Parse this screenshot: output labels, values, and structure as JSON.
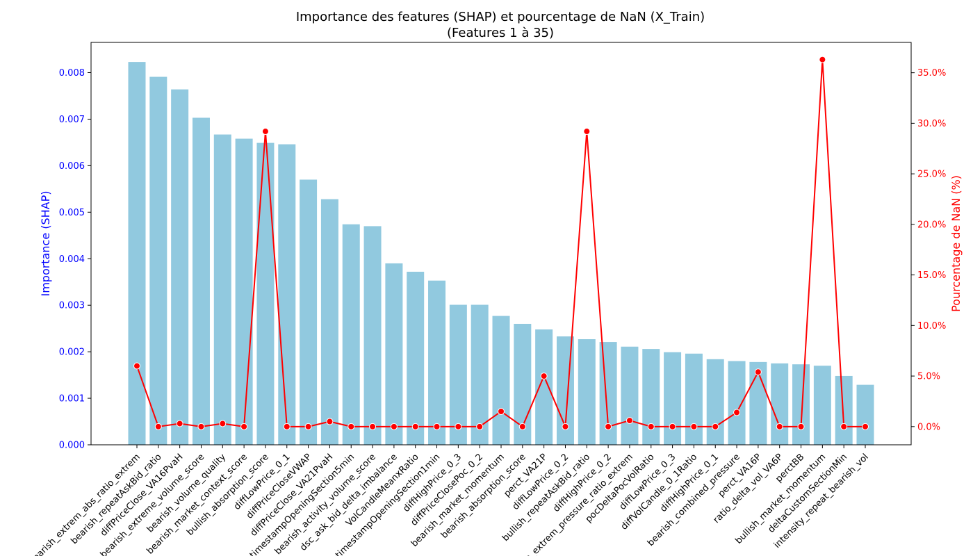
{
  "chart_data": {
    "type": "bar",
    "title": "Importance des features (SHAP) et pourcentage de NaN (X_Train)",
    "subtitle": "(Features 1 à 35)",
    "ylabel_left": "Importance (SHAP)",
    "ylabel_right": "Pourcentage de NaN (%)",
    "xlabel": "",
    "categories": [
      "bearish_extrem_abs_ratio_extrem",
      "bearish_repeatAskBid_ratio",
      "diffPriceClose_VA16PvaH",
      "bearish_extreme_volume_score",
      "bearish_volume_quality",
      "bearish_market_context_score",
      "bullish_absorption_score",
      "diffLowPrice_0_1",
      "diffPriceCloseVWAP",
      "diffPriceClose_VA21PvaH",
      "timestampOpeningSection5min",
      "bearish_activity_volume_score",
      "dsc_ask_bid_delta_imbalance",
      "VolCandleMeanxRatio",
      "timestampOpeningSection1min",
      "diffHighPrice_0_3",
      "diffPriceClosePoc_0_2",
      "bearish_market_momentum",
      "bearish_absorption_score",
      "perct_VA21P",
      "diffLowPrice_0_2",
      "bullish_repeatAskBid_ratio",
      "diffHighPrice_0_2",
      "bearish_extrem_pressure_ratio_extrem",
      "pocDeltaPocVolRatio",
      "diffLowPrice_0_3",
      "diffVolCandle_0_1Ratio",
      "diffHighPrice_0_1",
      "bearish_combined_pressure",
      "perct_VA16P",
      "ratio_delta_vol_VA6P",
      "perctBB",
      "bullish_market_momentum",
      "deltaCustomSectionMin",
      "intensity_repeat_bearish_vol"
    ],
    "series": [
      {
        "name": "Importance (SHAP)",
        "kind": "bar",
        "axis": "left",
        "color": "#91c9df",
        "values": [
          0.00823,
          0.00791,
          0.00764,
          0.00703,
          0.00667,
          0.00658,
          0.00649,
          0.00646,
          0.0057,
          0.00528,
          0.00474,
          0.0047,
          0.0039,
          0.00372,
          0.00353,
          0.00301,
          0.00301,
          0.00277,
          0.0026,
          0.00248,
          0.00233,
          0.00227,
          0.00221,
          0.00211,
          0.00206,
          0.00199,
          0.00196,
          0.00184,
          0.0018,
          0.00178,
          0.00175,
          0.00173,
          0.0017,
          0.00148,
          0.00129
        ]
      },
      {
        "name": "Pourcentage de NaN (%)",
        "kind": "line",
        "axis": "right",
        "color": "#ff0000",
        "values": [
          6.0,
          0.0,
          0.3,
          0.0,
          0.3,
          0.0,
          29.2,
          0.0,
          0.0,
          0.5,
          0.0,
          0.0,
          0.0,
          0.0,
          0.0,
          0.0,
          0.0,
          1.5,
          0.0,
          5.0,
          0.0,
          29.2,
          0.0,
          0.6,
          0.0,
          0.0,
          0.0,
          0.0,
          1.4,
          5.4,
          0.0,
          0.0,
          36.3,
          0.0,
          0.0
        ]
      }
    ],
    "ylim_left": [
      0,
      0.00865
    ],
    "ylim_right": [
      -1.8,
      38.0
    ],
    "yticks_left": [
      "0.000",
      "0.001",
      "0.002",
      "0.003",
      "0.004",
      "0.005",
      "0.006",
      "0.007",
      "0.008"
    ],
    "yticks_left_values": [
      0,
      0.001,
      0.002,
      0.003,
      0.004,
      0.005,
      0.006,
      0.007,
      0.008
    ],
    "yticks_right": [
      "0.0%",
      "5.0%",
      "10.0%",
      "15.0%",
      "20.0%",
      "25.0%",
      "30.0%",
      "35.0%"
    ],
    "yticks_right_values": [
      0,
      5,
      10,
      15,
      20,
      25,
      30,
      35
    ],
    "left_axis_color": "#0000ff",
    "right_axis_color": "#ff0000",
    "grid": false,
    "legend": "none"
  }
}
